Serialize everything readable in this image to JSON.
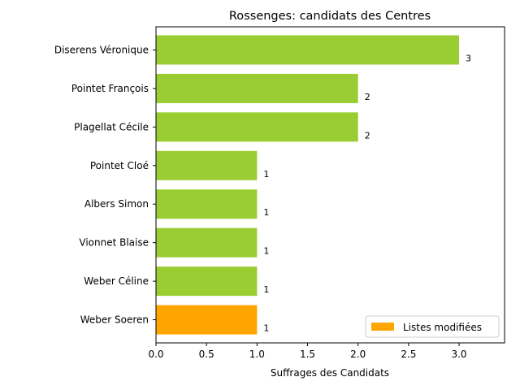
{
  "chart_data": {
    "type": "bar",
    "orientation": "horizontal",
    "title": "Rossenges: candidats des Centres",
    "xlabel": "Suffrages des Candidats",
    "ylabel": "",
    "xlim": [
      0,
      3.45
    ],
    "xticks": [
      "0.0",
      "0.5",
      "1.0",
      "1.5",
      "2.0",
      "2.5",
      "3.0"
    ],
    "grid": false,
    "legend_position": "lower-right",
    "colors": {
      "default": "#9acd32",
      "modified": "#ffa500"
    },
    "categories": [
      "Diserens Véronique",
      "Pointet François",
      "Plagellat Cécile",
      "Pointet Cloé",
      "Albers Simon",
      "Vionnet Blaise",
      "Weber Céline",
      "Weber Soeren"
    ],
    "values": [
      3,
      2,
      2,
      1,
      1,
      1,
      1,
      1
    ],
    "bar_colors": [
      "#9acd32",
      "#9acd32",
      "#9acd32",
      "#9acd32",
      "#9acd32",
      "#9acd32",
      "#9acd32",
      "#ffa500"
    ],
    "legend": [
      {
        "label": "Listes modifiées",
        "color": "#ffa500"
      }
    ]
  }
}
